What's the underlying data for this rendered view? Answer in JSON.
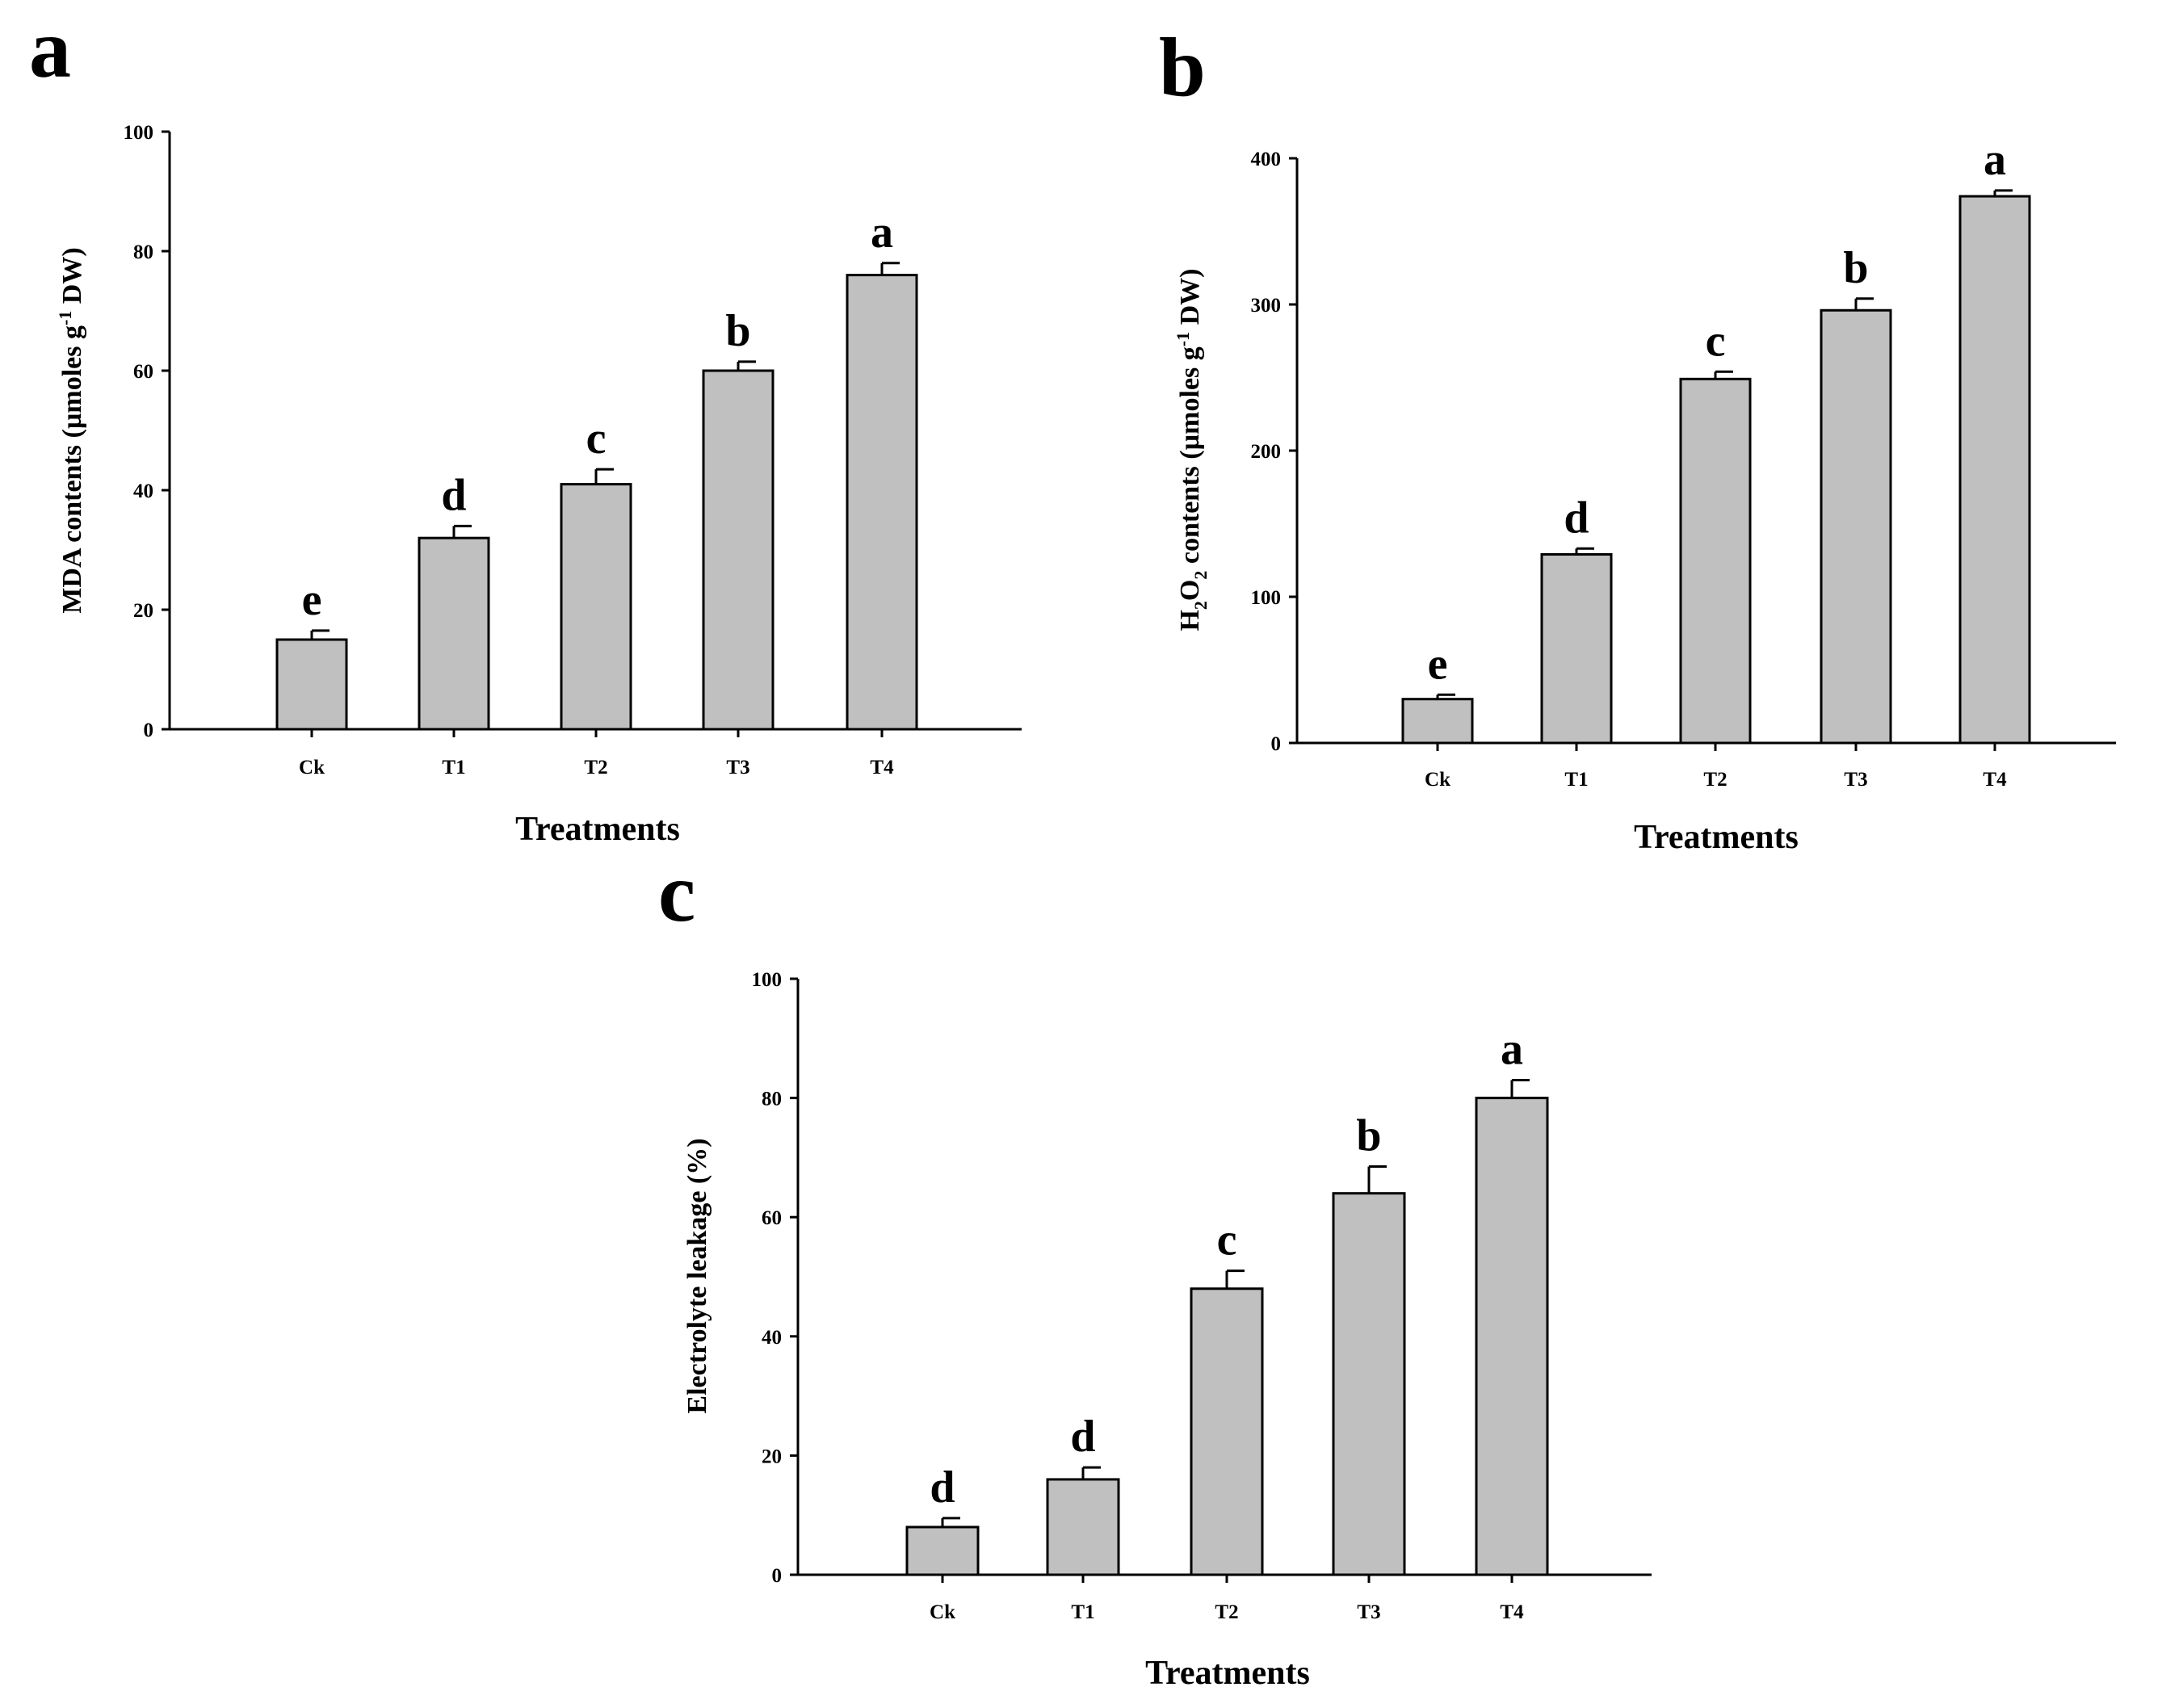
{
  "chart_data": [
    {
      "panel_label": "a",
      "type": "bar",
      "categories": [
        "Ck",
        "T1",
        "T2",
        "T3",
        "T4"
      ],
      "values": [
        15,
        32,
        41,
        60,
        76
      ],
      "errors": [
        1.5,
        2,
        2.5,
        1.5,
        2
      ],
      "significance": [
        "e",
        "d",
        "c",
        "b",
        "a"
      ],
      "xlabel": "Treatments",
      "ylabel_parts": [
        "MDA contents (µmoles g",
        "-1",
        " DW)"
      ],
      "ylim": [
        0,
        100
      ],
      "yticks": [
        0,
        20,
        40,
        60,
        80,
        100
      ]
    },
    {
      "panel_label": "b",
      "type": "bar",
      "categories": [
        "Ck",
        "T1",
        "T2",
        "T3",
        "T4"
      ],
      "values": [
        30,
        129,
        249,
        296,
        374
      ],
      "errors": [
        3,
        4,
        5,
        8,
        4
      ],
      "significance": [
        "e",
        "d",
        "c",
        "b",
        "a"
      ],
      "xlabel": "Treatments",
      "ylabel_parts": [
        "H",
        "2",
        "O",
        "2",
        " contents (µmoles g",
        "-1",
        " DW)"
      ],
      "ylim": [
        0,
        400
      ],
      "yticks": [
        0,
        100,
        200,
        300,
        400
      ]
    },
    {
      "panel_label": "c",
      "type": "bar",
      "categories": [
        "Ck",
        "T1",
        "T2",
        "T3",
        "T4"
      ],
      "values": [
        8,
        16,
        48,
        64,
        80
      ],
      "errors": [
        1.5,
        2,
        3,
        4.5,
        3
      ],
      "significance": [
        "d",
        "d",
        "c",
        "b",
        "a"
      ],
      "xlabel": "Treatments",
      "ylabel_parts": [
        "Electrolyte leakage (%)"
      ],
      "ylim": [
        0,
        100
      ],
      "yticks": [
        0,
        20,
        40,
        60,
        80,
        100
      ]
    }
  ]
}
